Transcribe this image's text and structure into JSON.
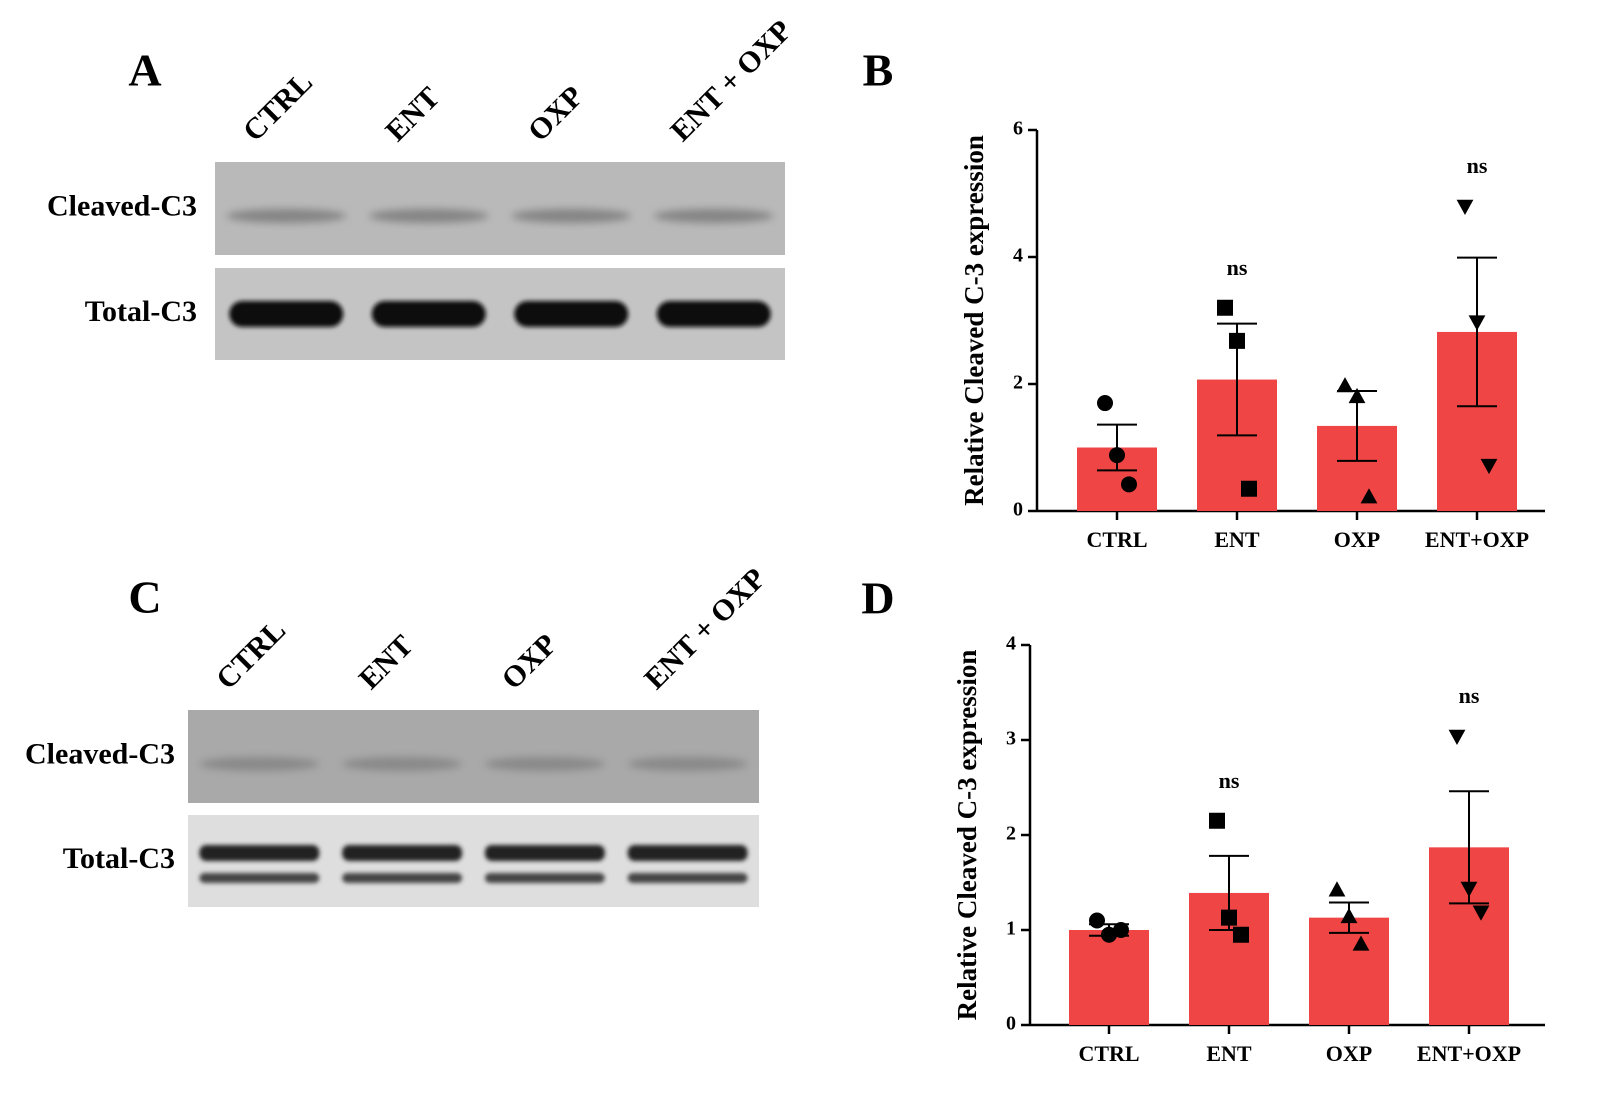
{
  "blots": [
    {
      "panel": "A",
      "lanes": [
        "CTRL",
        "ENT",
        "OXP",
        "ENT + OXP"
      ],
      "rows": [
        "Cleaved-C3",
        "Total-C3"
      ]
    },
    {
      "panel": "C",
      "lanes": [
        "CTRL",
        "ENT",
        "OXP",
        "ENT + OXP"
      ],
      "rows": [
        "Cleaved-C3",
        "Total-C3"
      ]
    }
  ],
  "chart_data": [
    {
      "type": "bar",
      "panel": "B",
      "ylabel": "Relative Cleaved C-3 expression",
      "categories": [
        "CTRL",
        "ENT",
        "OXP",
        "ENT+OXP"
      ],
      "values": [
        1.0,
        2.07,
        1.34,
        2.82
      ],
      "errors": [
        0.36,
        0.88,
        0.55,
        1.17
      ],
      "points": [
        [
          1.7,
          0.88,
          0.42
        ],
        [
          3.2,
          2.68,
          0.35
        ],
        [
          1.97,
          1.8,
          0.22
        ],
        [
          4.8,
          2.98,
          0.72
        ]
      ],
      "markers": [
        "circle",
        "square",
        "triangle",
        "triangle-down"
      ],
      "color": "#f04545",
      "ylim": [
        0,
        6
      ],
      "yticks": [
        0,
        2,
        4,
        6
      ],
      "annotations": [
        {
          "category": "ENT",
          "text": "ns"
        },
        {
          "category": "ENT+OXP",
          "text": "ns"
        }
      ]
    },
    {
      "type": "bar",
      "panel": "D",
      "ylabel": "Relative Cleaved C-3 expression",
      "categories": [
        "CTRL",
        "ENT",
        "OXP",
        "ENT+OXP"
      ],
      "values": [
        1.0,
        1.39,
        1.13,
        1.87
      ],
      "errors": [
        0.06,
        0.39,
        0.16,
        0.59
      ],
      "points": [
        [
          1.1,
          0.95,
          1.0
        ],
        [
          2.15,
          1.13,
          0.95
        ],
        [
          1.42,
          1.14,
          0.85
        ],
        [
          3.04,
          1.44,
          1.19
        ]
      ],
      "markers": [
        "circle",
        "square",
        "triangle",
        "triangle-down"
      ],
      "color": "#f04545",
      "ylim": [
        0,
        4
      ],
      "yticks": [
        0,
        1,
        2,
        3,
        4
      ],
      "annotations": [
        {
          "category": "ENT",
          "text": "ns"
        },
        {
          "category": "ENT+OXP",
          "text": "ns"
        }
      ]
    }
  ]
}
